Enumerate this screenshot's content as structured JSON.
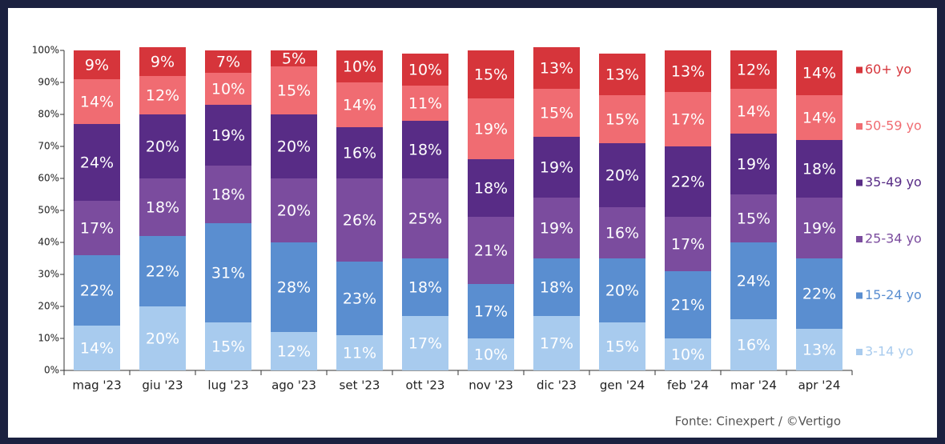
{
  "chart_data": {
    "type": "stacked_bar",
    "categories": [
      "mag '23",
      "giu '23",
      "lug '23",
      "ago '23",
      "set '23",
      "ott '23",
      "nov '23",
      "dic '23",
      "gen '24",
      "feb '24",
      "mar '24",
      "apr '24"
    ],
    "series": [
      {
        "name": "3-14 yo",
        "color": "#a8cbee",
        "values": [
          14,
          20,
          15,
          12,
          11,
          17,
          10,
          17,
          15,
          10,
          16,
          13
        ],
        "value_labels": [
          "14%",
          "20%",
          "15%",
          "12%",
          "11%",
          "17%",
          "10%",
          "17%",
          "15%",
          "10%",
          "16%",
          "13%"
        ]
      },
      {
        "name": "15-24 yo",
        "color": "#5a8ed0",
        "values": [
          22,
          22,
          31,
          28,
          23,
          18,
          17,
          18,
          20,
          21,
          24,
          22
        ],
        "value_labels": [
          "22%",
          "22%",
          "31%",
          "28%",
          "23%",
          "18%",
          "17%",
          "18%",
          "20%",
          "21%",
          "24%",
          "22%"
        ]
      },
      {
        "name": "25-34 yo",
        "color": "#7b4c9e",
        "values": [
          17,
          18,
          18,
          20,
          26,
          25,
          21,
          19,
          16,
          17,
          15,
          19
        ],
        "value_labels": [
          "17%",
          "18%",
          "18%",
          "20%",
          "26%",
          "25%",
          "21%",
          "19%",
          "16%",
          "17%",
          "15%",
          "19%"
        ]
      },
      {
        "name": "35-49 yo",
        "color": "#582c86",
        "values": [
          24,
          20,
          19,
          20,
          16,
          18,
          18,
          19,
          20,
          22,
          19,
          18
        ],
        "value_labels": [
          "24%",
          "20%",
          "19%",
          "20%",
          "16%",
          "18%",
          "18%",
          "19%",
          "20%",
          "22%",
          "19%",
          "18%"
        ]
      },
      {
        "name": "50-59 yo",
        "color": "#f06c72",
        "values": [
          14,
          12,
          10,
          15,
          14,
          11,
          19,
          15,
          15,
          17,
          14,
          14
        ],
        "value_labels": [
          "14%",
          "12%",
          "10%",
          "15%",
          "14%",
          "11%",
          "19%",
          "15%",
          "15%",
          "17%",
          "14%",
          "14%"
        ]
      },
      {
        "name": "60+ yo",
        "color": "#d6353b",
        "values": [
          9,
          9,
          7,
          5,
          10,
          10,
          15,
          13,
          13,
          13,
          12,
          14
        ],
        "value_labels": [
          "9%",
          "9%",
          "7%",
          "5%",
          "10%",
          "10%",
          "15%",
          "13%",
          "13%",
          "13%",
          "12%",
          "14%"
        ]
      }
    ],
    "ylim": [
      0,
      100
    ],
    "yticks": [
      {
        "value": 0,
        "label": "0%"
      },
      {
        "value": 10,
        "label": "10%"
      },
      {
        "value": 20,
        "label": "20%"
      },
      {
        "value": 30,
        "label": "30%"
      },
      {
        "value": 40,
        "label": "40%"
      },
      {
        "value": 50,
        "label": "50%"
      },
      {
        "value": 60,
        "label": "60%"
      },
      {
        "value": 70,
        "label": "70%"
      },
      {
        "value": 80,
        "label": "80%"
      },
      {
        "value": 90,
        "label": "90%"
      },
      {
        "value": 100,
        "label": "100%"
      }
    ],
    "source": "Fonte: Cinexpert / ©Vertigo"
  }
}
